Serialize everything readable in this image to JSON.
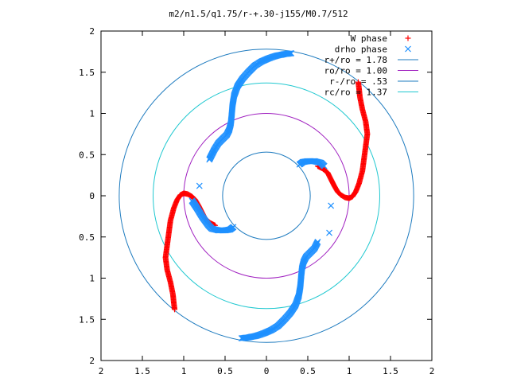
{
  "chart_data": {
    "type": "scatter",
    "title": "m2/n1.5/q1.75/r-+.30-j155/M0.7/512",
    "xlabel": "",
    "ylabel": "",
    "xlim": [
      -2,
      2
    ],
    "ylim": [
      -2,
      2
    ],
    "x_tick_labels": [
      "2",
      "1.5",
      "1",
      "0.5",
      "0",
      "0.5",
      "1",
      "1.5",
      "2"
    ],
    "y_tick_labels": [
      "2",
      "1.5",
      "1",
      "0.5",
      "0",
      "0.5",
      "1",
      "1.5",
      "2"
    ],
    "x_ticks": [
      -2,
      -1.5,
      -1,
      -0.5,
      0,
      0.5,
      1,
      1.5,
      2
    ],
    "y_ticks": [
      2,
      1.5,
      1,
      0.5,
      0,
      -0.5,
      -1,
      -1.5,
      -2
    ],
    "grid": false,
    "legend_position": "top-right",
    "series": [
      {
        "name": "W phase",
        "kind": "points",
        "marker": "plus",
        "color": "#ff0000",
        "points": [
          [
            0.62,
            0.36
          ],
          [
            0.68,
            0.33
          ],
          [
            0.74,
            0.28
          ],
          [
            0.78,
            0.2
          ],
          [
            0.82,
            0.12
          ],
          [
            0.86,
            0.05
          ],
          [
            0.9,
            0.01
          ],
          [
            0.95,
            -0.02
          ],
          [
            1.0,
            -0.03
          ],
          [
            1.04,
            -0.01
          ],
          [
            1.08,
            0.05
          ],
          [
            1.12,
            0.15
          ],
          [
            1.16,
            0.3
          ],
          [
            1.18,
            0.45
          ],
          [
            1.2,
            0.6
          ],
          [
            1.22,
            0.75
          ],
          [
            1.2,
            0.9
          ],
          [
            1.16,
            1.05
          ],
          [
            1.13,
            1.2
          ],
          [
            1.12,
            1.3
          ],
          [
            1.11,
            1.38
          ],
          [
            -0.62,
            -0.36
          ],
          [
            -0.68,
            -0.33
          ],
          [
            -0.74,
            -0.28
          ],
          [
            -0.78,
            -0.2
          ],
          [
            -0.82,
            -0.12
          ],
          [
            -0.86,
            -0.05
          ],
          [
            -0.9,
            -0.01
          ],
          [
            -0.95,
            0.02
          ],
          [
            -1.0,
            0.03
          ],
          [
            -1.04,
            0.01
          ],
          [
            -1.08,
            -0.05
          ],
          [
            -1.12,
            -0.15
          ],
          [
            -1.16,
            -0.3
          ],
          [
            -1.18,
            -0.45
          ],
          [
            -1.2,
            -0.6
          ],
          [
            -1.22,
            -0.75
          ],
          [
            -1.2,
            -0.9
          ],
          [
            -1.16,
            -1.05
          ],
          [
            -1.13,
            -1.2
          ],
          [
            -1.12,
            -1.3
          ],
          [
            -1.11,
            -1.38
          ]
        ]
      },
      {
        "name": "drho phase",
        "kind": "points",
        "marker": "cross",
        "color": "#1e90ff",
        "points": [
          [
            0.3,
            1.73
          ],
          [
            0.22,
            1.72
          ],
          [
            0.12,
            1.7
          ],
          [
            0.03,
            1.67
          ],
          [
            -0.06,
            1.63
          ],
          [
            -0.14,
            1.58
          ],
          [
            -0.22,
            1.5
          ],
          [
            -0.29,
            1.42
          ],
          [
            -0.35,
            1.33
          ],
          [
            -0.39,
            1.22
          ],
          [
            -0.41,
            1.1
          ],
          [
            -0.42,
            0.98
          ],
          [
            -0.43,
            0.88
          ],
          [
            -0.45,
            0.8
          ],
          [
            -0.48,
            0.74
          ],
          [
            -0.53,
            0.69
          ],
          [
            -0.58,
            0.64
          ],
          [
            -0.63,
            0.56
          ],
          [
            -0.69,
            0.44
          ],
          [
            -0.81,
            0.12
          ],
          [
            0.4,
            0.38
          ],
          [
            0.44,
            0.41
          ],
          [
            0.5,
            0.42
          ],
          [
            0.58,
            0.42
          ],
          [
            0.66,
            0.4
          ],
          [
            0.7,
            0.36
          ],
          [
            0.78,
            -0.12
          ],
          [
            0.76,
            -0.45
          ],
          [
            -0.3,
            -1.73
          ],
          [
            -0.22,
            -1.72
          ],
          [
            -0.12,
            -1.7
          ],
          [
            -0.03,
            -1.67
          ],
          [
            0.06,
            -1.63
          ],
          [
            0.14,
            -1.58
          ],
          [
            0.22,
            -1.5
          ],
          [
            0.29,
            -1.42
          ],
          [
            0.35,
            -1.33
          ],
          [
            0.39,
            -1.22
          ],
          [
            0.41,
            -1.1
          ],
          [
            0.42,
            -0.98
          ],
          [
            0.43,
            -0.88
          ],
          [
            0.45,
            -0.8
          ],
          [
            0.48,
            -0.74
          ],
          [
            0.53,
            -0.69
          ],
          [
            0.58,
            -0.64
          ],
          [
            0.62,
            -0.56
          ],
          [
            -0.4,
            -0.38
          ],
          [
            -0.44,
            -0.41
          ],
          [
            -0.5,
            -0.42
          ],
          [
            -0.58,
            -0.42
          ],
          [
            -0.66,
            -0.4
          ],
          [
            -0.7,
            -0.36
          ],
          [
            -0.78,
            -0.25
          ],
          [
            -0.84,
            -0.15
          ],
          [
            -0.9,
            -0.06
          ]
        ]
      },
      {
        "name": "r+/ro = 1.78",
        "kind": "circle",
        "radius": 1.78,
        "color": "#1e7bbf"
      },
      {
        "name": "ro/ro = 1.00",
        "kind": "circle",
        "radius": 1.0,
        "color": "#a020c0"
      },
      {
        "name": "r-/ro = .53",
        "kind": "circle",
        "radius": 0.53,
        "color": "#1e7bbf"
      },
      {
        "name": "rc/ro = 1.37",
        "kind": "circle",
        "radius": 1.37,
        "color": "#20c8d0"
      }
    ]
  }
}
